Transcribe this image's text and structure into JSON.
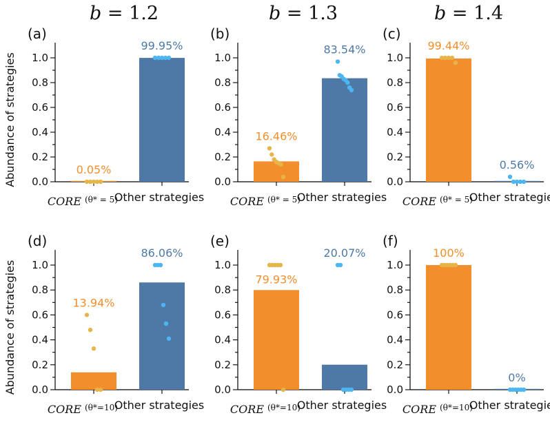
{
  "figure": {
    "column_titles": [
      "b = 1.2",
      "b = 1.3",
      "b = 1.4"
    ],
    "ylabel": "Abundance of strategies",
    "yticks": [
      "0.0",
      "0.2",
      "0.4",
      "0.6",
      "0.8",
      "1.0"
    ]
  },
  "colors": {
    "core_bar": "#f28e2b",
    "other_bar": "#4e79a7",
    "core_dot": "#e6b54a",
    "other_dot": "#4db6f0",
    "core_text": "#f28e2b",
    "other_text": "#4e79a7"
  },
  "chart_data": [
    {
      "panel": "(a)",
      "type": "bar",
      "ylim": [
        0,
        1.0
      ],
      "categories": [
        "CORE",
        "Other strategies"
      ],
      "category_sub": "(θ* = 5)",
      "values": [
        0.0005,
        0.9995
      ],
      "value_labels": [
        "0.05%",
        "99.95%"
      ],
      "points": [
        [
          0.0,
          0.0,
          0.0,
          0.0,
          0.0
        ],
        [
          1.0,
          1.0,
          1.0,
          1.0,
          1.0
        ]
      ]
    },
    {
      "panel": "(b)",
      "type": "bar",
      "ylim": [
        0,
        1.0
      ],
      "categories": [
        "CORE",
        "Other strategies"
      ],
      "category_sub": "(θ* = 5)",
      "values": [
        0.1646,
        0.8354
      ],
      "value_labels": [
        "16.46%",
        "83.54%"
      ],
      "points": [
        [
          0.27,
          0.22,
          0.18,
          0.16,
          0.15,
          0.14,
          0.04
        ],
        [
          0.97,
          0.86,
          0.85,
          0.83,
          0.82,
          0.8,
          0.76,
          0.74
        ]
      ]
    },
    {
      "panel": "(c)",
      "type": "bar",
      "ylim": [
        0,
        1.0
      ],
      "categories": [
        "CORE",
        "Other strategies"
      ],
      "category_sub": "(θ* = 5)",
      "values": [
        0.9944,
        0.0056
      ],
      "value_labels": [
        "99.44%",
        "0.56%"
      ],
      "points": [
        [
          1.0,
          1.0,
          1.0,
          1.0,
          0.96
        ],
        [
          0.04,
          0.0,
          0.0,
          0.0,
          0.0
        ]
      ]
    },
    {
      "panel": "(d)",
      "type": "bar",
      "ylim": [
        0,
        1.0
      ],
      "categories": [
        "CORE",
        "Other strategies"
      ],
      "category_sub": "(θ*=10)",
      "values": [
        0.1394,
        0.8606
      ],
      "value_labels": [
        "13.94%",
        "86.06%"
      ],
      "points": [
        [
          0.6,
          0.48,
          0.33,
          0.0,
          0.0
        ],
        [
          1.0,
          1.0,
          1.0,
          0.68,
          0.53,
          0.41
        ]
      ]
    },
    {
      "panel": "(e)",
      "type": "bar",
      "ylim": [
        0,
        1.0
      ],
      "categories": [
        "CORE",
        "Other strategies"
      ],
      "category_sub": "(θ*=10)",
      "values": [
        0.7993,
        0.2007
      ],
      "value_labels": [
        "79.93%",
        "20.07%"
      ],
      "points": [
        [
          1.0,
          1.0,
          1.0,
          1.0,
          1.0,
          0.0
        ],
        [
          1.0,
          1.0,
          0.0,
          0.0,
          0.0,
          0.0
        ]
      ]
    },
    {
      "panel": "(f)",
      "type": "bar",
      "ylim": [
        0,
        1.0
      ],
      "categories": [
        "CORE",
        "Other strategies"
      ],
      "category_sub": "(θ*=10)",
      "values": [
        1.0,
        0.0
      ],
      "value_labels": [
        "100%",
        "0%"
      ],
      "points": [
        [
          1.0,
          1.0,
          1.0,
          1.0,
          1.0,
          1.0
        ],
        [
          0.0,
          0.0,
          0.0,
          0.0,
          0.0,
          0.0
        ]
      ]
    }
  ]
}
